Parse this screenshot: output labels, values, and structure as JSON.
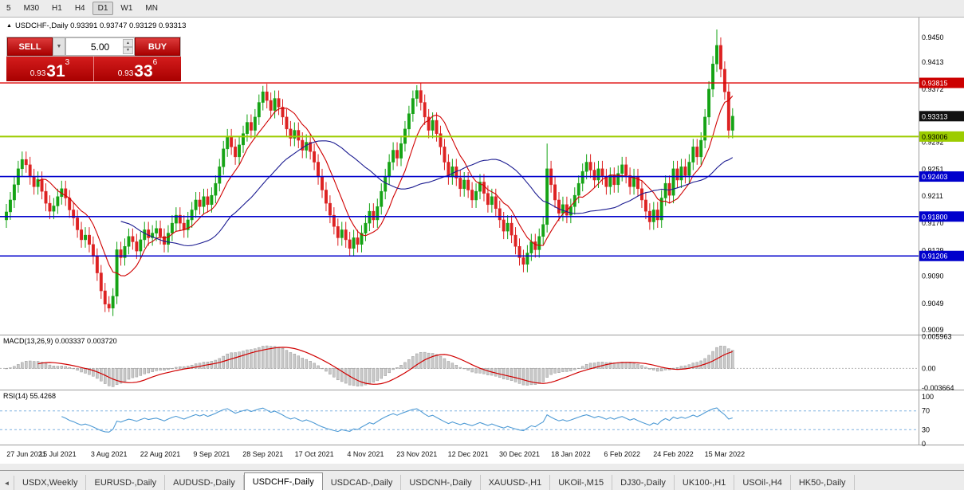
{
  "toolbar": {
    "items": [
      "5",
      "M30",
      "H1",
      "H4",
      "D1",
      "W1",
      "MN"
    ],
    "active": "D1"
  },
  "icons": {
    "dropdown": "▼",
    "spin_up": "▲",
    "spin_down": "▼",
    "tab_nav_left": "◄"
  },
  "chart_header": {
    "marker": "▲",
    "text": "USDCHF-,Daily 0.93391 0.93747 0.93129 0.93313"
  },
  "trade_panel": {
    "sell_label": "SELL",
    "buy_label": "BUY",
    "volume": "5.00",
    "sell": {
      "base": "0.93",
      "pips": "31",
      "pt": "3"
    },
    "buy": {
      "base": "0.93",
      "pips": "33",
      "pt": "6"
    }
  },
  "price_scale": {
    "labels": [
      "0.9450",
      "0.9413",
      "0.9372",
      "0.9333",
      "0.9292",
      "0.9251",
      "0.9211",
      "0.9170",
      "0.9129",
      "0.9090",
      "0.9049",
      "0.9009"
    ]
  },
  "levels": [
    {
      "value": 0.93815,
      "label": "0.93815",
      "color": "#dd0000",
      "tag_bg": "#cc0000",
      "tag_fg": "#ffffff",
      "width": 1.4
    },
    {
      "value": 0.93006,
      "label": "0.93006",
      "color": "#9ccc00",
      "tag_bg": "#9ccc00",
      "tag_fg": "#000000",
      "width": 2
    },
    {
      "value": 0.92403,
      "label": "0.92403",
      "color": "#0000cc",
      "tag_bg": "#0000cc",
      "tag_fg": "#ffffff",
      "width": 1.6
    },
    {
      "value": 0.918,
      "label": "0.91800",
      "color": "#0000cc",
      "tag_bg": "#0000cc",
      "tag_fg": "#ffffff",
      "width": 1.6
    },
    {
      "value": 0.91206,
      "label": "0.91206",
      "color": "#0000cc",
      "tag_bg": "#0000cc",
      "tag_fg": "#ffffff",
      "width": 1.6
    }
  ],
  "current_price": {
    "value": 0.93313,
    "label": "0.93313",
    "bg": "#111111",
    "fg": "#ffffff"
  },
  "macd": {
    "label": "MACD(13,26,9)",
    "value_main": "0.003337",
    "value_signal": "0.003720",
    "fast": 13,
    "slow": 26,
    "smooth": 9,
    "vmax": 0.0062,
    "vmin": -0.004,
    "hist_fill": "#c9c9c9",
    "hist_stroke": "#9a9a9a",
    "signal_color": "#d00000",
    "scale": [
      {
        "v": 0.005963,
        "t": "0.005963"
      },
      {
        "v": 0,
        "t": "0.00"
      },
      {
        "v": -0.003664,
        "t": "-0.003664"
      }
    ]
  },
  "rsi": {
    "label": "RSI(14)",
    "value": "55.4268",
    "period": 14,
    "color": "#4f9bd5",
    "levels": [
      70,
      30
    ],
    "level_color": "#7fb0df",
    "scale": [
      {
        "v": 100,
        "t": "100"
      },
      {
        "v": 70,
        "t": "70"
      },
      {
        "v": 30,
        "t": "30"
      },
      {
        "v": 0,
        "t": "0"
      }
    ]
  },
  "dates": [
    "27 Jun 2021",
    "15 Jul 2021",
    "3 Aug 2021",
    "22 Aug 2021",
    "9 Sep 2021",
    "28 Sep 2021",
    "17 Oct 2021",
    "4 Nov 2021",
    "23 Nov 2021",
    "12 Dec 2021",
    "30 Dec 2021",
    "18 Jan 2022",
    "6 Feb 2022",
    "24 Feb 2022",
    "15 Mar 2022"
  ],
  "tabs": {
    "items": [
      "USDX,Weekly",
      "EURUSD-,Daily",
      "AUDUSD-,Daily",
      "USDCHF-,Daily",
      "USDCAD-,Daily",
      "USDCNH-,Daily",
      "XAUUSD-,H1",
      "UKOil-,M15",
      "DJ30-,Daily",
      "UK100-,H1",
      "USOil-,H4",
      "HK50-,Daily"
    ],
    "active": "USDCHF-,Daily"
  },
  "chart_data": {
    "type": "candlestick",
    "symbol": "USDCHF-",
    "timeframe": "Daily",
    "current": {
      "open": 0.93391,
      "high": 0.93747,
      "low": 0.93129,
      "close": 0.93313
    },
    "first_open": 0.9175,
    "wick": 0.0012,
    "price_max": 0.948,
    "price_min": 0.9002,
    "bull_color": "#15a315",
    "bear_color": "#dd2222",
    "ma": [
      {
        "period": 9,
        "color": "#d00000"
      },
      {
        "period": 30,
        "color": "#1a1a90"
      }
    ],
    "special": {
      "26": {
        "low": 0.9036
      },
      "65": {
        "high": 0.9377
      },
      "104": {
        "high": 0.9378
      },
      "137": {
        "high": 0.929
      },
      "180": {
        "high": 0.9462
      }
    },
    "closes": [
      0.9187,
      0.9205,
      0.9228,
      0.9252,
      0.9266,
      0.9258,
      0.924,
      0.9225,
      0.9236,
      0.9218,
      0.92,
      0.9188,
      0.9196,
      0.921,
      0.9222,
      0.9208,
      0.919,
      0.9178,
      0.916,
      0.9145,
      0.9152,
      0.9138,
      0.912,
      0.9095,
      0.9068,
      0.9048,
      0.9042,
      0.906,
      0.913,
      0.9118,
      0.9135,
      0.915,
      0.9142,
      0.9128,
      0.9145,
      0.916,
      0.9148,
      0.9155,
      0.9162,
      0.915,
      0.9138,
      0.9155,
      0.917,
      0.9182,
      0.917,
      0.916,
      0.9175,
      0.919,
      0.9205,
      0.9195,
      0.921,
      0.9198,
      0.9212,
      0.923,
      0.9255,
      0.9282,
      0.93,
      0.9285,
      0.927,
      0.9288,
      0.9305,
      0.9322,
      0.931,
      0.933,
      0.9352,
      0.9368,
      0.9355,
      0.934,
      0.9358,
      0.9345,
      0.933,
      0.9312,
      0.9298,
      0.931,
      0.9295,
      0.928,
      0.9292,
      0.9278,
      0.9262,
      0.924,
      0.922,
      0.92,
      0.9182,
      0.9165,
      0.9148,
      0.916,
      0.9145,
      0.9132,
      0.9148,
      0.9138,
      0.9155,
      0.917,
      0.9188,
      0.9175,
      0.9195,
      0.9218,
      0.924,
      0.9262,
      0.928,
      0.9268,
      0.929,
      0.9312,
      0.9335,
      0.9358,
      0.937,
      0.9352,
      0.933,
      0.931,
      0.9325,
      0.9305,
      0.9285,
      0.9262,
      0.924,
      0.9255,
      0.9238,
      0.9222,
      0.9235,
      0.922,
      0.9205,
      0.9218,
      0.9232,
      0.9215,
      0.9198,
      0.921,
      0.9192,
      0.9175,
      0.9158,
      0.917,
      0.9152,
      0.9135,
      0.9118,
      0.9108,
      0.9125,
      0.9142,
      0.913,
      0.915,
      0.9168,
      0.9252,
      0.9228,
      0.9205,
      0.9185,
      0.9198,
      0.9182,
      0.9195,
      0.9212,
      0.923,
      0.9248,
      0.9262,
      0.925,
      0.9235,
      0.9252,
      0.924,
      0.9225,
      0.9242,
      0.9228,
      0.9245,
      0.9258,
      0.9242,
      0.9225,
      0.924,
      0.9222,
      0.9205,
      0.9188,
      0.9172,
      0.919,
      0.9175,
      0.9208,
      0.923,
      0.9212,
      0.9252,
      0.9235,
      0.9255,
      0.9242,
      0.9262,
      0.9285,
      0.927,
      0.9295,
      0.933,
      0.9372,
      0.941,
      0.9438,
      0.9402,
      0.9368,
      0.931,
      0.93313
    ]
  }
}
